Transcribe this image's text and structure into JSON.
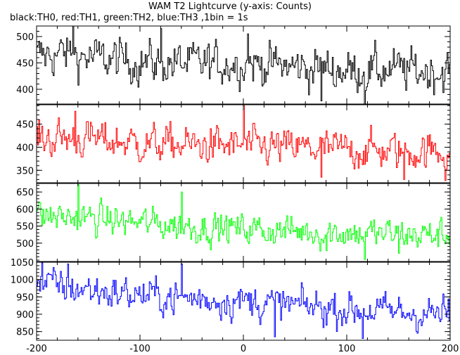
{
  "title": "WAM T2 Lightcurve (y-axis: Counts)",
  "subtitle": "black:TH0, red:TH1, green:TH2, blue:TH3 ,1bin = 1s",
  "chart_data": {
    "type": "line",
    "xlim": [
      -200,
      200
    ],
    "x_ticks": [
      -200,
      -100,
      0,
      100,
      200
    ],
    "bin_seconds": 1,
    "grid": false,
    "legend": "none (colors named in subtitle)",
    "series": [
      {
        "name": "TH0",
        "color": "#000000",
        "ylim": [
          372,
          520
        ],
        "y_ticks": [
          400,
          450,
          500
        ],
        "trend": {
          "x": [
            -200,
            -175,
            -150,
            -100,
            -50,
            0,
            50,
            100,
            150,
            200
          ],
          "y": [
            462,
            468,
            460,
            452,
            448,
            450,
            442,
            436,
            436,
            434
          ]
        },
        "noise_sd": 20,
        "spikes": [
          [
            -165,
            520
          ],
          [
            -80,
            515
          ],
          [
            4,
            505
          ],
          [
            75,
            378
          ],
          [
            117,
            372
          ]
        ]
      },
      {
        "name": "TH1",
        "color": "#ff0000",
        "ylim": [
          323,
          492
        ],
        "y_ticks": [
          350,
          400,
          450
        ],
        "trend": {
          "x": [
            -200,
            -150,
            -100,
            -50,
            0,
            50,
            100,
            150,
            200
          ],
          "y": [
            420,
            418,
            408,
            404,
            402,
            398,
            395,
            392,
            390
          ]
        },
        "noise_sd": 20,
        "spikes": [
          [
            -163,
            478
          ],
          [
            0,
            490
          ],
          [
            75,
            335
          ],
          [
            155,
            330
          ],
          [
            195,
            328
          ]
        ]
      },
      {
        "name": "TH2",
        "color": "#00ff00",
        "ylim": [
          446,
          675
        ],
        "y_ticks": [
          500,
          550,
          600,
          650
        ],
        "trend": {
          "x": [
            -200,
            -150,
            -100,
            -50,
            0,
            50,
            100,
            150,
            200
          ],
          "y": [
            580,
            572,
            560,
            548,
            542,
            535,
            530,
            526,
            522
          ]
        },
        "noise_sd": 23,
        "spikes": [
          [
            -160,
            672
          ],
          [
            -60,
            650
          ],
          [
            117,
            452
          ],
          [
            80,
            478
          ],
          [
            150,
            470
          ]
        ]
      },
      {
        "name": "TH3",
        "color": "#0000ff",
        "ylim": [
          825,
          1050
        ],
        "y_ticks": [
          850,
          900,
          950,
          1000,
          1050
        ],
        "trend": {
          "x": [
            -200,
            -150,
            -100,
            -50,
            0,
            50,
            100,
            150,
            200
          ],
          "y": [
            990,
            970,
            955,
            945,
            938,
            925,
            915,
            905,
            900
          ]
        },
        "noise_sd": 25,
        "spikes": [
          [
            -195,
            1048
          ],
          [
            -170,
            1045
          ],
          [
            -60,
            1045
          ],
          [
            30,
            835
          ],
          [
            115,
            830
          ]
        ]
      }
    ]
  }
}
